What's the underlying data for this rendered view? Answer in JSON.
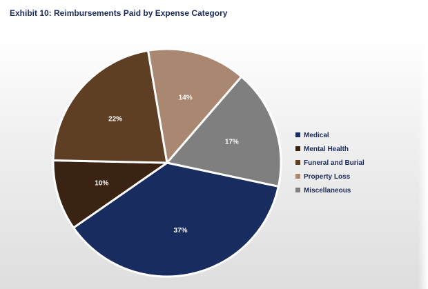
{
  "chart_data": {
    "type": "pie",
    "title": "Exhibit 10: Reimbursements Paid by Expense Category",
    "slices": [
      {
        "name": "Medical",
        "value": 37,
        "label": "37%",
        "color": "#192c5f",
        "label_color": "#ffffff"
      },
      {
        "name": "Mental Health",
        "value": 10,
        "label": "10%",
        "color": "#3b2313",
        "label_color": "#ffffff"
      },
      {
        "name": "Funeral and Burial",
        "value": 22,
        "label": "22%",
        "color": "#5f3f24",
        "label_color": "#ffffff"
      },
      {
        "name": "Property Loss",
        "value": 14,
        "label": "14%",
        "color": "#a98770",
        "label_color": "#ffffff"
      },
      {
        "name": "Miscellaneous",
        "value": 17,
        "label": "17%",
        "color": "#7f7f7f",
        "label_color": "#ffffff"
      }
    ],
    "legend_position": "right"
  }
}
